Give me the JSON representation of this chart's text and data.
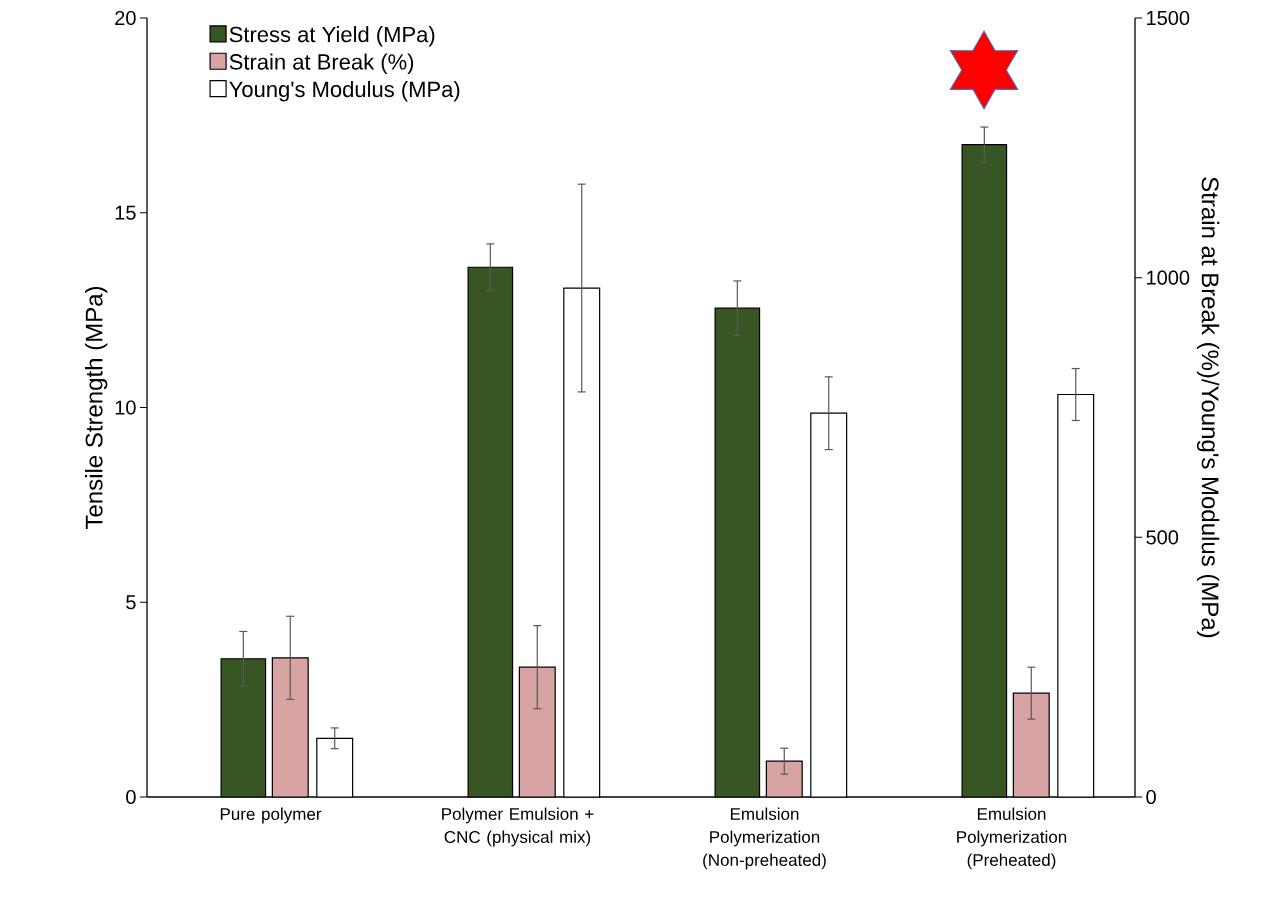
{
  "chart_data": {
    "type": "bar",
    "categories": [
      "Pure polymer",
      "Polymer Emulsion + CNC (physical mix)",
      "Emulsion Polymerization (Non-preheated)",
      "Emulsion Polymerization (Preheated)"
    ],
    "ylabel": "Tensile Strength (MPa)",
    "y2label": "Strain at Break (%)/Young's Modulus (MPa)",
    "ylim": [
      0,
      20
    ],
    "yticks": [
      0,
      5,
      10,
      15,
      20
    ],
    "y2lim": [
      0,
      1500
    ],
    "y2ticks": [
      0,
      500,
      1000,
      1500
    ],
    "legend": "top left",
    "series": [
      {
        "name": "Stress at Yield (MPa)",
        "color": "#375623",
        "values": [
          3.55,
          13.6,
          12.55,
          16.75
        ],
        "errors": [
          0.7,
          0.6,
          0.7,
          0.45
        ]
      },
      {
        "name": "Strain at Break (%)",
        "color": "#d8a3a3",
        "axis": "y2",
        "values": [
          268,
          250,
          69,
          200
        ],
        "errors": [
          80,
          80,
          25,
          50
        ]
      },
      {
        "name": "Young's Modulus (MPa)",
        "color": "#ffffff",
        "axis": "y2",
        "values": [
          113,
          980,
          739,
          775
        ],
        "errors": [
          20,
          200,
          70,
          50
        ]
      }
    ]
  }
}
